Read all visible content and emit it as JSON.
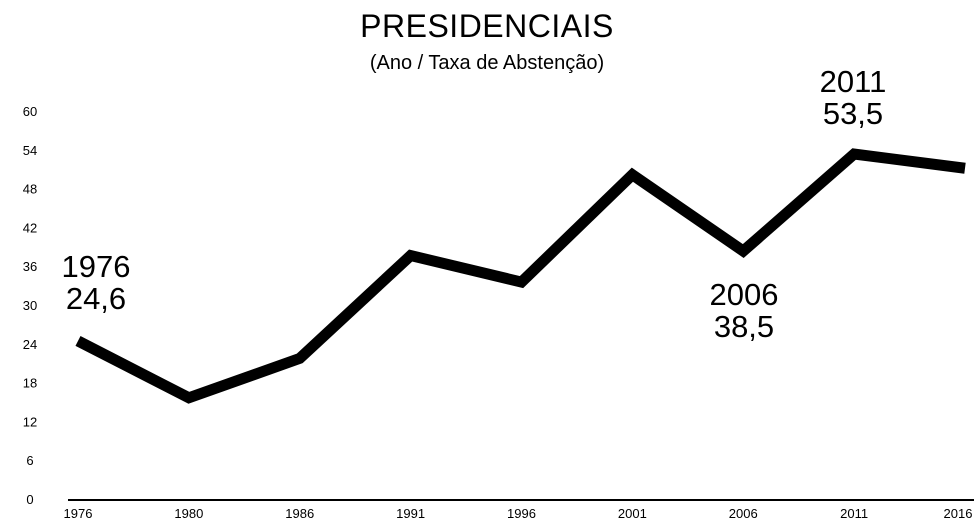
{
  "chart_data": {
    "type": "line",
    "title": "PRESIDENCIAIS",
    "subtitle": "(Ano / Taxa de Abstenção)",
    "categories": [
      "1976",
      "1980",
      "1986",
      "1991",
      "1996",
      "2001",
      "2006",
      "2011",
      "2016"
    ],
    "series": [
      {
        "values": [
          24.6,
          15.8,
          21.9,
          37.8,
          33.7,
          50.3,
          38.5,
          53.5,
          51.3
        ]
      }
    ],
    "yticks": [
      0,
      6,
      12,
      18,
      24,
      30,
      36,
      42,
      48,
      54,
      60
    ],
    "ylim": [
      0,
      60
    ],
    "grid": false,
    "line_color": "#000000",
    "annotations": [
      {
        "category": "1976",
        "year_label": "1976",
        "value_label": "24,6"
      },
      {
        "category": "2006",
        "year_label": "2006",
        "value_label": "38,5"
      },
      {
        "category": "2011",
        "year_label": "2011",
        "value_label": "53,5"
      }
    ]
  }
}
